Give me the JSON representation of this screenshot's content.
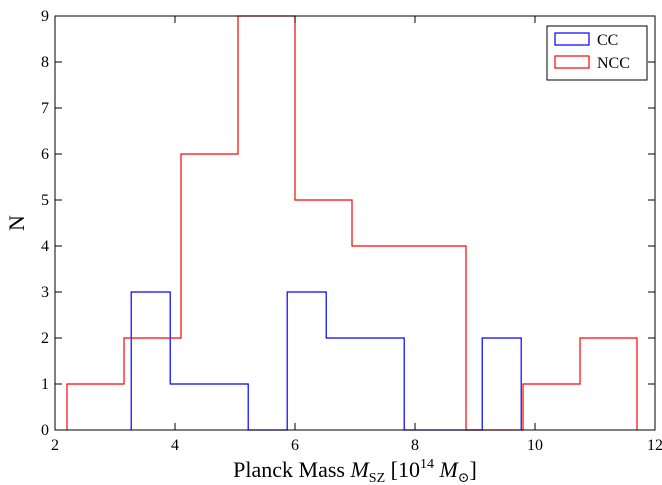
{
  "chart_data": {
    "type": "histogram",
    "title": "",
    "xlabel": {
      "prefix": "Planck Mass ",
      "symbol": "M",
      "symbol_sub": "SZ",
      "unit_open": " [10",
      "unit_exp": "14",
      "unit_symbol": "M",
      "unit_symbol_sub": "⊙",
      "unit_close": "]"
    },
    "ylabel": "N",
    "xlim": [
      2,
      12
    ],
    "ylim": [
      0,
      9
    ],
    "xticks": [
      "2",
      "4",
      "6",
      "8",
      "10",
      "12"
    ],
    "yticks": [
      "0",
      "1",
      "2",
      "3",
      "4",
      "5",
      "6",
      "7",
      "8",
      "9"
    ],
    "grid": false,
    "legend_position": "top-right",
    "series": [
      {
        "name": "CC",
        "color": "#0000ff",
        "bin_edges": [
          3.27,
          3.92,
          4.57,
          5.22,
          5.87,
          6.52,
          7.17,
          7.82,
          8.47,
          9.12,
          9.77
        ],
        "counts": [
          3,
          1,
          1,
          0,
          3,
          2,
          2,
          0,
          0,
          2
        ]
      },
      {
        "name": "NCC",
        "color": "#ff0000",
        "bin_edges": [
          2.2,
          3.15,
          4.1,
          5.05,
          6.0,
          6.95,
          7.9,
          8.85,
          9.8,
          10.75,
          11.7
        ],
        "counts": [
          1,
          2,
          6,
          9,
          5,
          4,
          4,
          0,
          1,
          2
        ]
      }
    ]
  }
}
